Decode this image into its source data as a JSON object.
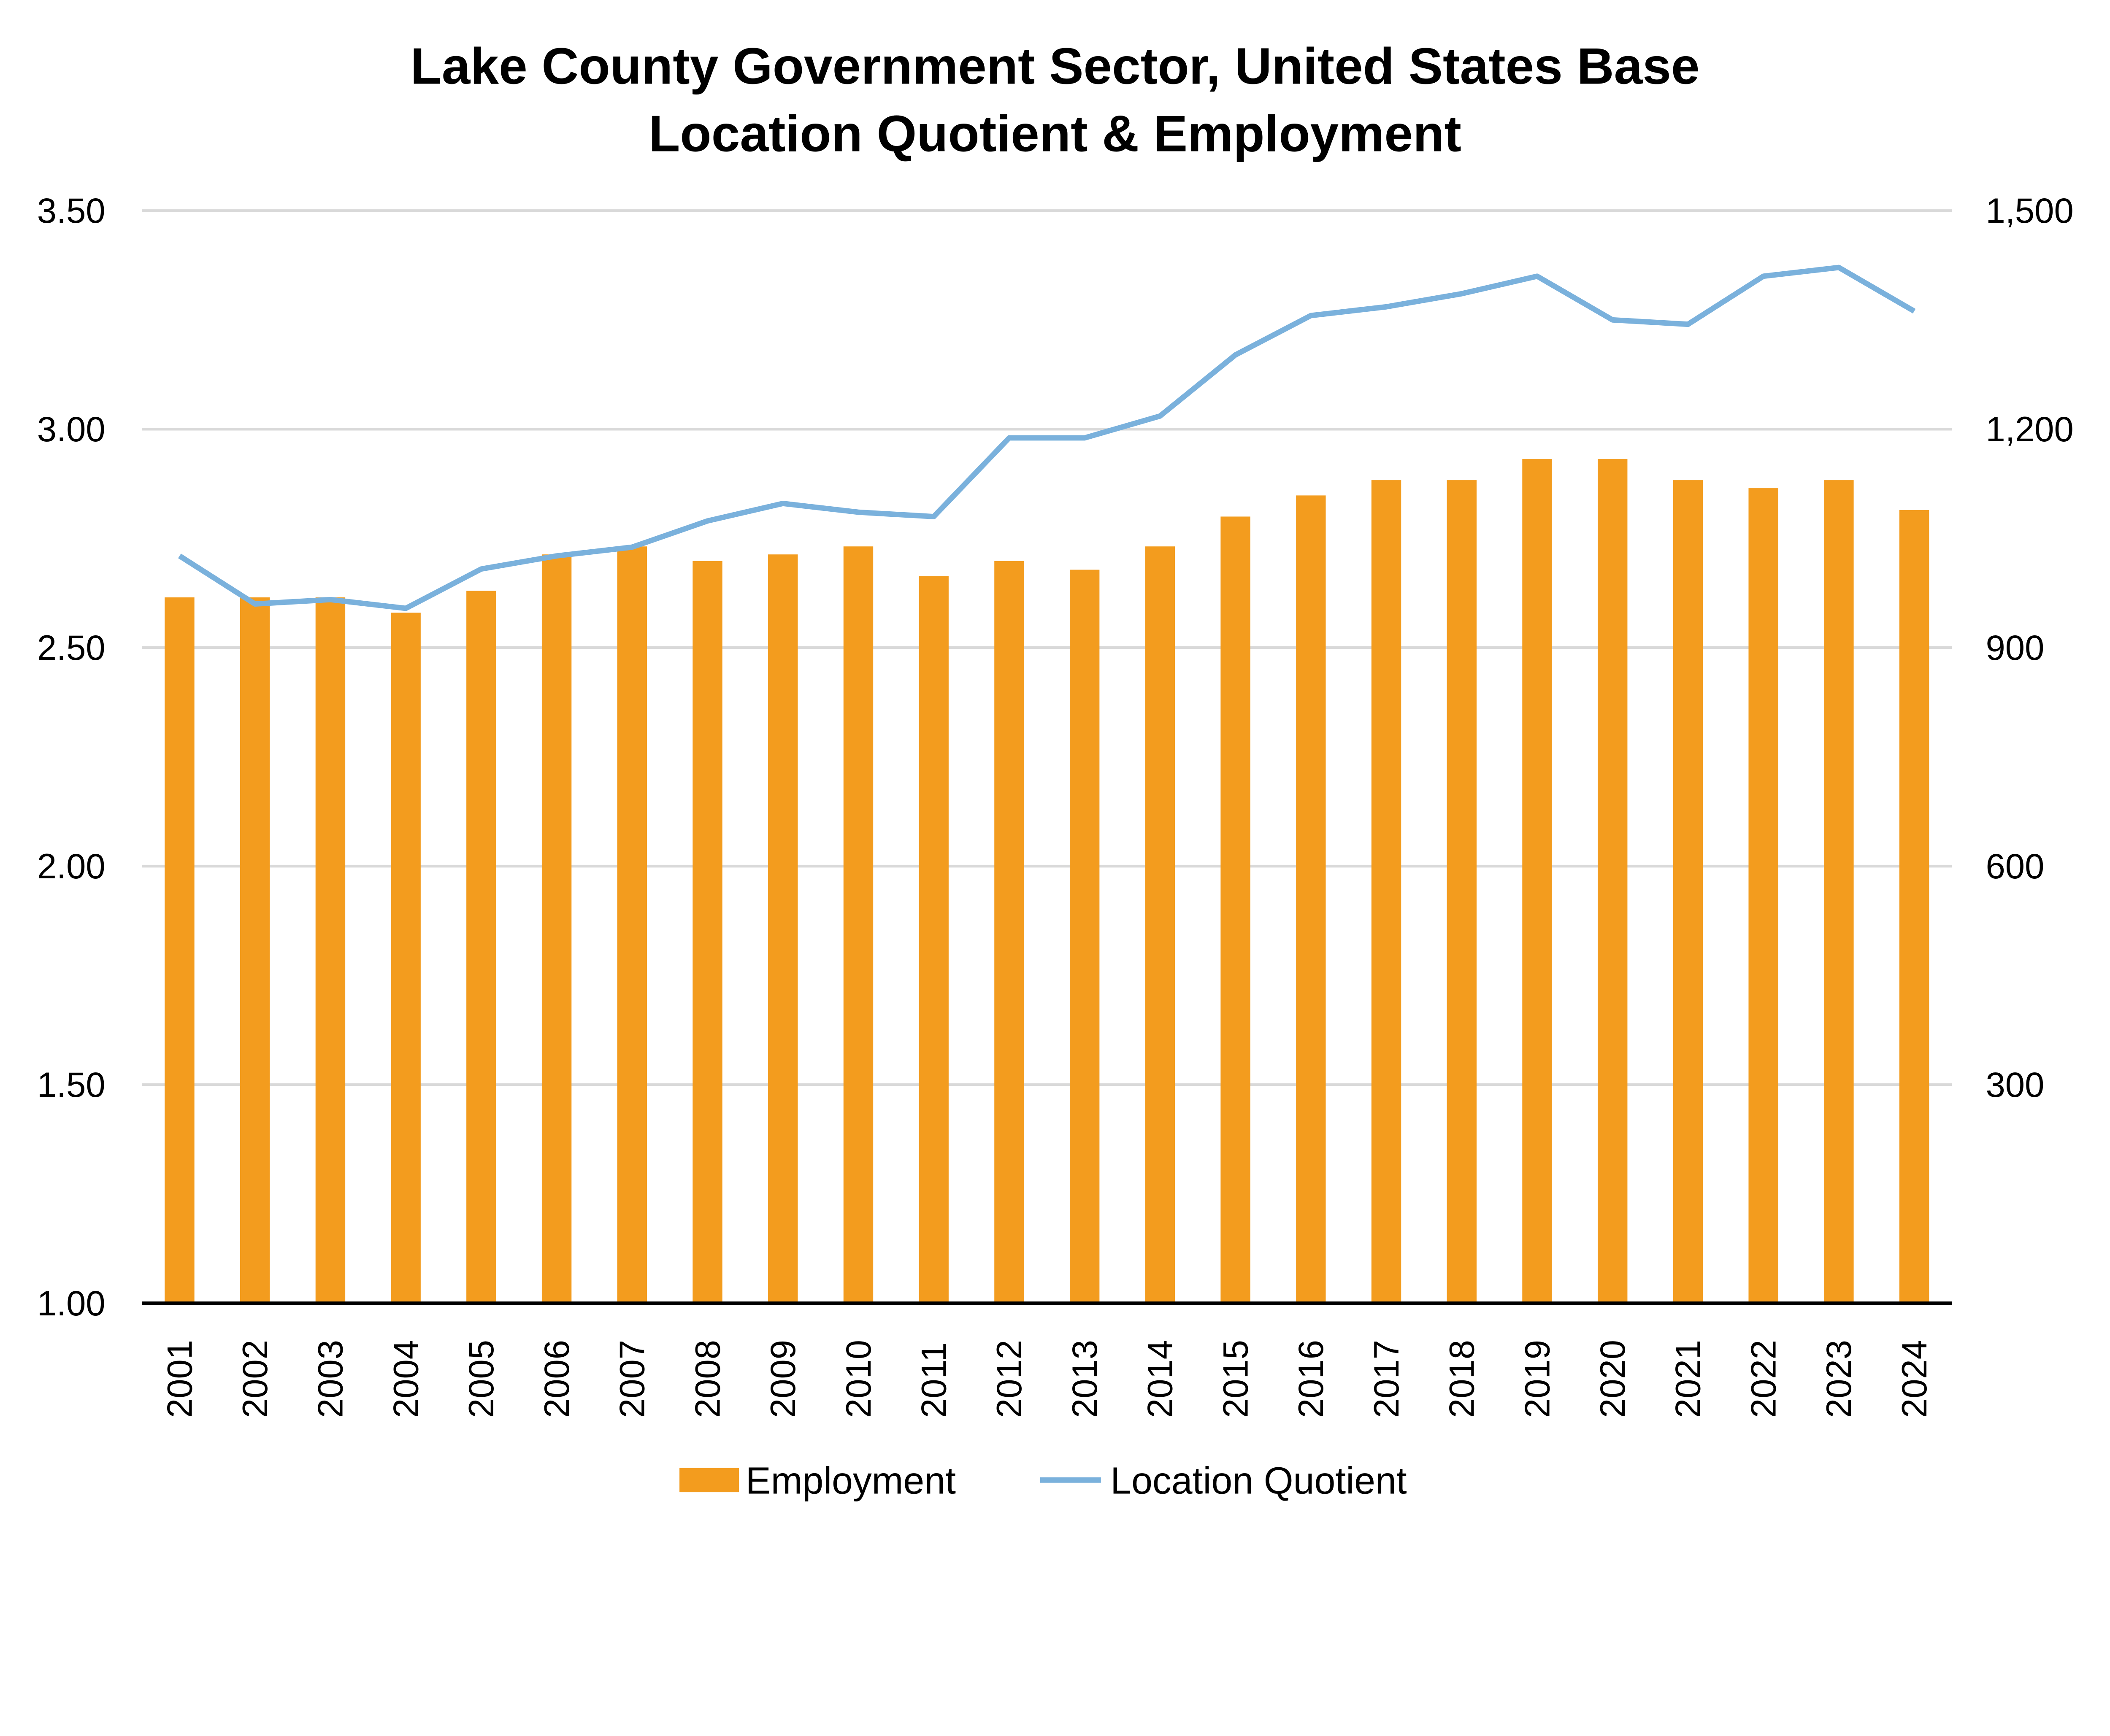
{
  "chart_data": {
    "type": "bar+line",
    "title": "Lake County Government Sector, United States Base Location Quotient & Employment",
    "title_lines": [
      "Lake County Government Sector, United States Base",
      "Location Quotient & Employment"
    ],
    "categories": [
      "2001",
      "2002",
      "2003",
      "2004",
      "2005",
      "2006",
      "2007",
      "2008",
      "2009",
      "2010",
      "2011",
      "2012",
      "2013",
      "2014",
      "2015",
      "2016",
      "2017",
      "2018",
      "2019",
      "2020",
      "2021",
      "2022",
      "2023",
      "2024"
    ],
    "series": [
      {
        "name": "Employment",
        "type": "bar",
        "axis": "right",
        "color": "#F39C1E",
        "values": [
          969,
          969,
          969,
          948,
          978,
          1028,
          1039,
          1019,
          1028,
          1039,
          998,
          1019,
          1007,
          1039,
          1080,
          1109,
          1130,
          1130,
          1159,
          1159,
          1130,
          1119,
          1130,
          1089
        ]
      },
      {
        "name": "Location Quotient",
        "type": "line",
        "axis": "left",
        "color": "#7AB1DC",
        "values": [
          2.71,
          2.6,
          2.61,
          2.59,
          2.68,
          2.71,
          2.73,
          2.79,
          2.83,
          2.81,
          2.8,
          2.98,
          2.98,
          3.03,
          3.17,
          3.26,
          3.28,
          3.31,
          3.35,
          3.25,
          3.24,
          3.35,
          3.37,
          3.27
        ]
      }
    ],
    "left_axis": {
      "ylim": [
        1.0,
        3.5
      ],
      "ticks": [
        "1.00",
        "1.50",
        "2.00",
        "2.50",
        "3.00",
        "3.50"
      ]
    },
    "right_axis": {
      "ylim": [
        0,
        1500
      ],
      "ticks": [
        "300",
        "600",
        "900",
        "1,200",
        "1,500"
      ]
    },
    "grid": true,
    "legend": {
      "position": "bottom",
      "entries": [
        "Employment",
        "Location Quotient"
      ]
    }
  }
}
